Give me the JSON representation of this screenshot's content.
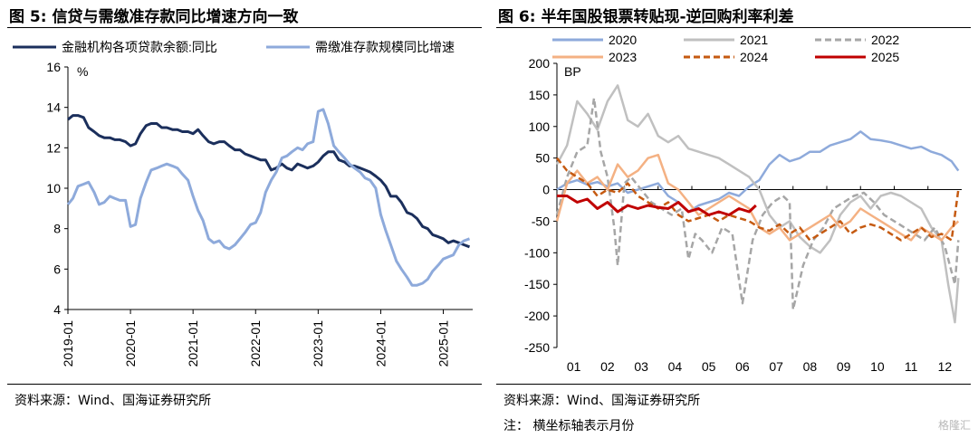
{
  "figures": [
    {
      "title": "图 5:  信贷与需缴准存款同比增速方向一致",
      "source": "资料来源：Wind、国海证券研究所"
    },
    {
      "title": "图 6:  半年国股银票转贴现-逆回购利率利差",
      "source": "资料来源：Wind、国海证券研究所",
      "note": "注：   横坐标轴表示月份"
    }
  ],
  "watermark": "格隆汇",
  "colors": {
    "credit": "#1b2f5c",
    "deposit": "#8eaadb",
    "s2020": "#8eaadb",
    "s2021": "#c0c0c0",
    "s2022": "#a6a6a6",
    "s2023": "#f4b183",
    "s2024": "#c55a11",
    "s2025": "#c00000"
  },
  "chart_data": [
    {
      "type": "line",
      "ylabel": "%",
      "ylim": [
        4,
        16
      ],
      "yticks": [
        "4",
        "6",
        "8",
        "10",
        "12",
        "14",
        "16"
      ],
      "xticks": [
        "2019-01",
        "2020-01",
        "2021-01",
        "2022-01",
        "2023-01",
        "2024-01",
        "2025-01"
      ],
      "xlim": [
        2019.0,
        2025.47
      ],
      "legend": "top",
      "series": [
        {
          "name": "金融机构各项贷款余额:同比",
          "x": [
            2019.0,
            2019.08,
            2019.16,
            2019.25,
            2019.33,
            2019.42,
            2019.5,
            2019.58,
            2019.67,
            2019.75,
            2019.83,
            2019.92,
            2020.0,
            2020.08,
            2020.16,
            2020.25,
            2020.33,
            2020.42,
            2020.5,
            2020.58,
            2020.67,
            2020.75,
            2020.83,
            2020.92,
            2021.0,
            2021.08,
            2021.16,
            2021.25,
            2021.33,
            2021.42,
            2021.5,
            2021.58,
            2021.67,
            2021.75,
            2021.83,
            2021.92,
            2022.0,
            2022.08,
            2022.16,
            2022.25,
            2022.33,
            2022.42,
            2022.5,
            2022.58,
            2022.67,
            2022.75,
            2022.83,
            2022.92,
            2023.0,
            2023.08,
            2023.16,
            2023.25,
            2023.33,
            2023.42,
            2023.5,
            2023.58,
            2023.67,
            2023.75,
            2023.83,
            2023.92,
            2024.0,
            2024.08,
            2024.16,
            2024.25,
            2024.33,
            2024.42,
            2024.5,
            2024.58,
            2024.67,
            2024.75,
            2024.83,
            2024.92,
            2025.0,
            2025.08,
            2025.16,
            2025.25,
            2025.33,
            2025.42
          ],
          "values": [
            13.4,
            13.6,
            13.6,
            13.5,
            13.0,
            12.8,
            12.6,
            12.5,
            12.5,
            12.4,
            12.4,
            12.3,
            12.1,
            12.2,
            12.7,
            13.1,
            13.2,
            13.2,
            13.0,
            13.0,
            12.9,
            12.9,
            12.8,
            12.8,
            12.7,
            12.9,
            12.6,
            12.3,
            12.2,
            12.3,
            12.3,
            12.1,
            11.9,
            11.9,
            11.7,
            11.6,
            11.5,
            11.4,
            11.4,
            10.9,
            11.0,
            11.2,
            11.0,
            10.9,
            11.2,
            11.1,
            11.0,
            11.1,
            11.3,
            11.6,
            11.8,
            11.8,
            11.4,
            11.3,
            11.1,
            11.1,
            11.0,
            10.9,
            10.8,
            10.6,
            10.4,
            10.1,
            9.6,
            9.6,
            9.3,
            8.8,
            8.7,
            8.5,
            8.1,
            8.0,
            7.7,
            7.6,
            7.5,
            7.3,
            7.4,
            7.3,
            7.2,
            7.1
          ]
        },
        {
          "name": "需缴准存款规模同比增速",
          "x": [
            2019.0,
            2019.08,
            2019.16,
            2019.25,
            2019.33,
            2019.42,
            2019.5,
            2019.58,
            2019.67,
            2019.75,
            2019.83,
            2019.92,
            2020.0,
            2020.08,
            2020.16,
            2020.25,
            2020.33,
            2020.42,
            2020.5,
            2020.58,
            2020.67,
            2020.75,
            2020.83,
            2020.92,
            2021.0,
            2021.08,
            2021.16,
            2021.25,
            2021.33,
            2021.42,
            2021.5,
            2021.58,
            2021.67,
            2021.75,
            2021.83,
            2021.92,
            2022.0,
            2022.08,
            2022.16,
            2022.25,
            2022.33,
            2022.42,
            2022.5,
            2022.58,
            2022.67,
            2022.75,
            2022.83,
            2022.92,
            2023.0,
            2023.08,
            2023.16,
            2023.25,
            2023.33,
            2023.42,
            2023.5,
            2023.58,
            2023.67,
            2023.75,
            2023.83,
            2023.92,
            2024.0,
            2024.08,
            2024.16,
            2024.25,
            2024.33,
            2024.42,
            2024.5,
            2024.58,
            2024.67,
            2024.75,
            2024.83,
            2024.92,
            2025.0,
            2025.08,
            2025.16,
            2025.25,
            2025.33,
            2025.42
          ],
          "values": [
            9.2,
            9.5,
            10.1,
            10.2,
            10.3,
            9.8,
            9.2,
            9.3,
            9.6,
            9.5,
            9.4,
            9.4,
            8.1,
            8.2,
            9.5,
            10.3,
            10.9,
            11.0,
            11.1,
            11.2,
            11.1,
            11.0,
            10.7,
            10.4,
            9.6,
            8.9,
            8.4,
            7.5,
            7.3,
            7.4,
            7.1,
            7.0,
            7.2,
            7.5,
            7.8,
            8.2,
            8.3,
            8.8,
            9.8,
            10.4,
            10.8,
            11.5,
            11.6,
            11.8,
            12.0,
            11.9,
            12.2,
            12.3,
            13.8,
            13.9,
            13.2,
            12.1,
            11.8,
            11.5,
            11.2,
            11.0,
            10.8,
            10.5,
            10.4,
            10.0,
            8.7,
            7.9,
            7.2,
            6.4,
            6.0,
            5.6,
            5.2,
            5.2,
            5.3,
            5.5,
            5.9,
            6.2,
            6.5,
            6.6,
            6.7,
            7.2,
            7.4,
            7.5
          ]
        }
      ]
    },
    {
      "type": "line",
      "ylabel": "BP",
      "ylim": [
        -250,
        200
      ],
      "yticks": [
        "-250",
        "-200",
        "-150",
        "-100",
        "-50",
        "0",
        "50",
        "100",
        "150",
        "200"
      ],
      "xticks": [
        "01",
        "02",
        "03",
        "04",
        "05",
        "06",
        "07",
        "08",
        "09",
        "10",
        "11",
        "12"
      ],
      "xlim": [
        1,
        13
      ],
      "legend": "top",
      "series": [
        {
          "name": "2020",
          "style": "solid",
          "x": [
            1.0,
            1.3,
            1.6,
            1.9,
            2.2,
            2.5,
            2.8,
            3.1,
            3.4,
            3.7,
            4.0,
            4.3,
            4.6,
            4.9,
            5.2,
            5.5,
            5.8,
            6.1,
            6.4,
            6.7,
            7.0,
            7.3,
            7.6,
            7.9,
            8.2,
            8.5,
            8.8,
            9.1,
            9.4,
            9.7,
            10.0,
            10.3,
            10.6,
            10.9,
            11.2,
            11.5,
            11.8,
            12.1,
            12.4,
            12.7,
            12.9
          ],
          "values": [
            0,
            10,
            15,
            8,
            12,
            5,
            10,
            -5,
            0,
            5,
            10,
            -10,
            -20,
            -35,
            -25,
            -20,
            -15,
            -5,
            -10,
            5,
            15,
            40,
            55,
            45,
            50,
            60,
            60,
            70,
            75,
            80,
            92,
            80,
            78,
            75,
            70,
            65,
            68,
            60,
            55,
            45,
            30
          ]
        },
        {
          "name": "2021",
          "style": "solid",
          "x": [
            1.0,
            1.3,
            1.6,
            1.9,
            2.2,
            2.5,
            2.8,
            3.1,
            3.4,
            3.7,
            4.0,
            4.3,
            4.6,
            4.9,
            5.2,
            5.5,
            5.8,
            6.1,
            6.4,
            6.7,
            7.0,
            7.3,
            7.6,
            7.9,
            8.2,
            8.5,
            8.8,
            9.1,
            9.4,
            9.7,
            10.0,
            10.3,
            10.6,
            10.9,
            11.2,
            11.5,
            11.8,
            12.1,
            12.4,
            12.6,
            12.8,
            12.9
          ],
          "values": [
            40,
            70,
            140,
            120,
            95,
            140,
            165,
            110,
            100,
            120,
            85,
            75,
            85,
            65,
            60,
            55,
            50,
            40,
            30,
            20,
            0,
            -40,
            -60,
            -50,
            -75,
            -90,
            -100,
            -80,
            -40,
            -20,
            -10,
            -30,
            -10,
            -5,
            -10,
            -20,
            -30,
            -60,
            -80,
            -150,
            -210,
            -140
          ]
        },
        {
          "name": "2022",
          "style": "dashed",
          "x": [
            1.0,
            1.3,
            1.6,
            1.9,
            2.1,
            2.3,
            2.5,
            2.7,
            2.8,
            3.0,
            3.2,
            3.5,
            3.8,
            4.1,
            4.4,
            4.7,
            4.9,
            5.1,
            5.3,
            5.6,
            5.9,
            6.2,
            6.5,
            6.8,
            7.1,
            7.4,
            7.7,
            7.9,
            8.0,
            8.3,
            8.6,
            8.9,
            9.2,
            9.5,
            9.8,
            10.1,
            10.4,
            10.7,
            11.0,
            11.3,
            11.6,
            11.9,
            12.2,
            12.5,
            12.8,
            12.9
          ],
          "values": [
            -40,
            20,
            60,
            70,
            145,
            60,
            20,
            -60,
            -120,
            10,
            20,
            0,
            -20,
            -30,
            -40,
            -30,
            -110,
            -70,
            -80,
            -100,
            -60,
            -70,
            -180,
            -80,
            -40,
            -20,
            -10,
            -20,
            -190,
            -120,
            -80,
            -60,
            -30,
            -20,
            -10,
            -5,
            -20,
            -40,
            -50,
            -60,
            -70,
            -80,
            -60,
            -90,
            -150,
            -80
          ]
        },
        {
          "name": "2023",
          "style": "solid",
          "x": [
            1.0,
            1.3,
            1.6,
            1.9,
            2.2,
            2.5,
            2.8,
            3.1,
            3.4,
            3.7,
            4.0,
            4.3,
            4.6,
            4.9,
            5.2,
            5.5,
            5.8,
            6.1,
            6.4,
            6.7,
            7.0,
            7.3,
            7.6,
            7.9,
            8.2,
            8.5,
            8.8,
            9.1,
            9.4,
            9.7,
            10.0,
            10.3,
            10.6,
            10.9,
            11.2,
            11.5,
            11.8,
            12.1,
            12.4,
            12.7,
            12.9
          ],
          "values": [
            -50,
            10,
            30,
            10,
            20,
            0,
            40,
            20,
            30,
            50,
            55,
            10,
            0,
            -20,
            -40,
            -30,
            -20,
            -10,
            -20,
            -30,
            -60,
            -70,
            -60,
            -80,
            -70,
            -60,
            -50,
            -40,
            -60,
            -50,
            -30,
            -40,
            -50,
            -60,
            -70,
            -80,
            -60,
            -70,
            -80,
            -60,
            -50
          ]
        },
        {
          "name": "2024",
          "style": "dashed",
          "x": [
            1.0,
            1.3,
            1.6,
            1.9,
            2.2,
            2.5,
            2.8,
            3.1,
            3.4,
            3.7,
            4.0,
            4.3,
            4.6,
            4.9,
            5.2,
            5.5,
            5.8,
            6.1,
            6.4,
            6.7,
            7.0,
            7.3,
            7.6,
            7.9,
            8.2,
            8.5,
            8.8,
            9.1,
            9.4,
            9.7,
            10.0,
            10.3,
            10.6,
            10.9,
            11.2,
            11.5,
            11.8,
            12.1,
            12.4,
            12.7,
            12.9
          ],
          "values": [
            50,
            30,
            20,
            10,
            -10,
            0,
            -5,
            10,
            -10,
            -20,
            -30,
            -20,
            -40,
            -50,
            -45,
            -40,
            -50,
            -40,
            -45,
            -50,
            -60,
            -65,
            -55,
            -70,
            -60,
            -80,
            -70,
            -60,
            -50,
            -70,
            -60,
            -55,
            -60,
            -70,
            -80,
            -70,
            -60,
            -75,
            -70,
            -80,
            0
          ]
        },
        {
          "name": "2025",
          "style": "solid",
          "x": [
            1.0,
            1.3,
            1.6,
            1.9,
            2.2,
            2.5,
            2.8,
            3.1,
            3.4,
            3.7,
            4.0,
            4.3,
            4.6,
            4.9,
            5.2,
            5.5,
            5.8,
            6.1,
            6.4,
            6.7,
            6.9
          ],
          "values": [
            -10,
            -10,
            -20,
            -15,
            -30,
            -20,
            -35,
            -25,
            -30,
            -25,
            -28,
            -30,
            -20,
            -35,
            -30,
            -40,
            -35,
            -40,
            -30,
            -35,
            -25
          ]
        }
      ]
    }
  ]
}
